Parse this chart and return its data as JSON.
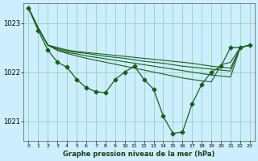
{
  "xlabel_label": "Graphe pression niveau de la mer (hPa)",
  "bg_color": "#cceeff",
  "line_color": "#1a5e20",
  "x_ticks": [
    0,
    1,
    2,
    3,
    4,
    5,
    6,
    7,
    8,
    9,
    10,
    11,
    12,
    13,
    14,
    15,
    16,
    17,
    18,
    19,
    20,
    21,
    22,
    23
  ],
  "ylim": [
    1020.6,
    1023.4
  ],
  "yticks": [
    1021,
    1022,
    1023
  ],
  "y_main": [
    1023.3,
    1022.85,
    1022.45,
    1022.2,
    1022.1,
    1021.85,
    1021.68,
    1021.6,
    1021.58,
    1021.85,
    1022.0,
    1022.12,
    1021.85,
    1021.65,
    1021.1,
    1020.75,
    1020.78,
    1021.35,
    1021.75,
    1022.0,
    1022.12,
    1022.5,
    1022.5,
    1022.55
  ],
  "y_smooth_a": [
    1023.3,
    1022.9,
    1022.55,
    1022.5,
    1022.45,
    1022.42,
    1022.4,
    1022.38,
    1022.36,
    1022.34,
    1022.32,
    1022.3,
    1022.28,
    1022.26,
    1022.24,
    1022.22,
    1022.2,
    1022.18,
    1022.15,
    1022.12,
    1022.1,
    1022.08,
    1022.5,
    1022.55
  ],
  "y_smooth_b": [
    1023.3,
    1022.9,
    1022.55,
    1022.48,
    1022.43,
    1022.4,
    1022.38,
    1022.35,
    1022.32,
    1022.3,
    1022.28,
    1022.25,
    1022.22,
    1022.2,
    1022.18,
    1022.15,
    1022.12,
    1022.1,
    1022.08,
    1022.06,
    1022.04,
    1022.02,
    1022.5,
    1022.55
  ],
  "y_smooth_c": [
    1023.3,
    1022.9,
    1022.55,
    1022.46,
    1022.4,
    1022.37,
    1022.33,
    1022.3,
    1022.27,
    1022.24,
    1022.21,
    1022.18,
    1022.15,
    1022.12,
    1022.09,
    1022.06,
    1022.03,
    1022.0,
    1021.97,
    1021.94,
    1021.92,
    1021.9,
    1022.5,
    1022.55
  ],
  "y_smooth_d": [
    1023.3,
    1022.9,
    1022.55,
    1022.44,
    1022.38,
    1022.33,
    1022.28,
    1022.24,
    1022.2,
    1022.16,
    1022.12,
    1022.08,
    1022.04,
    1022.0,
    1021.96,
    1021.92,
    1021.88,
    1021.85,
    1021.82,
    1021.8,
    1022.15,
    1022.2,
    1022.5,
    1022.55
  ]
}
